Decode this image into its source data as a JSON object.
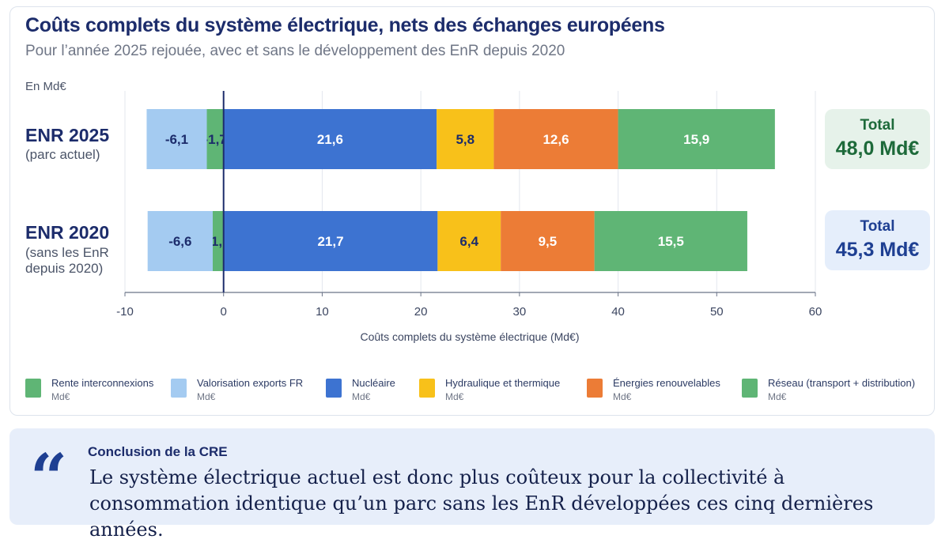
{
  "chart_data": {
    "type": "bar",
    "orientation": "horizontal",
    "stacked": true,
    "title": "Coûts complets du système électrique, nets des échanges européens",
    "subtitle": "Pour l’année 2025 rejouée, avec et sans le développement des EnR depuis 2020",
    "unit": "En Md€",
    "xlabel": "Coûts complets du système électrique (Md€)",
    "xlim": [
      -10,
      60
    ],
    "xticks": [
      "-10",
      "0",
      "10",
      "20",
      "30",
      "40",
      "50",
      "60"
    ],
    "categories": [
      {
        "name": "ENR 2025",
        "sub": "(parc actuel)",
        "total_label": "Total",
        "total_value": "48,0 Md€",
        "total_style": "green"
      },
      {
        "name": "ENR 2020",
        "sub": "(sans les EnR depuis 2020)",
        "total_label": "Total",
        "total_value": "45,3 Md€",
        "total_style": "blue"
      }
    ],
    "series": [
      {
        "name": "Rente interconnexions",
        "unit": "Md€",
        "color": "#5fb575",
        "values": [
          -1.7,
          -1.1
        ],
        "labels": [
          "-1,7",
          "-1,1"
        ],
        "label_color": "#1c2c6b"
      },
      {
        "name": "Valorisation exports FR",
        "unit": "Md€",
        "color": "#a4cbf1",
        "values": [
          -6.1,
          -6.6
        ],
        "labels": [
          "-6,1",
          "-6,6"
        ],
        "label_color": "#1c2c6b"
      },
      {
        "name": "Nucléaire",
        "unit": "Md€",
        "color": "#3d73d1",
        "values": [
          21.6,
          21.7
        ],
        "labels": [
          "21,6",
          "21,7"
        ],
        "label_color": "#ffffff"
      },
      {
        "name": "Hydraulique et thermique",
        "unit": "Md€",
        "color": "#f8c11a",
        "values": [
          5.8,
          6.4
        ],
        "labels": [
          "5,8",
          "6,4"
        ],
        "label_color": "#1c2c6b"
      },
      {
        "name": "Énergies renouvelables",
        "unit": "Md€",
        "color": "#ec7c36",
        "values": [
          12.6,
          9.5
        ],
        "labels": [
          "12,6",
          "9,5"
        ],
        "label_color": "#ffffff"
      },
      {
        "name": "Réseau (transport + distribution)",
        "unit": "Md€",
        "color": "#5fb575",
        "values": [
          15.9,
          15.5
        ],
        "labels": [
          "15,9",
          "15,5"
        ],
        "label_color": "#ffffff"
      }
    ]
  },
  "conclusion": {
    "quote_icon": "quote-icon",
    "title": "Conclusion de la CRE",
    "text": "Le système électrique actuel est donc plus coûteux pour la collectivité à consommation identique qu’un parc sans les EnR développées ces cinq dernières années."
  }
}
